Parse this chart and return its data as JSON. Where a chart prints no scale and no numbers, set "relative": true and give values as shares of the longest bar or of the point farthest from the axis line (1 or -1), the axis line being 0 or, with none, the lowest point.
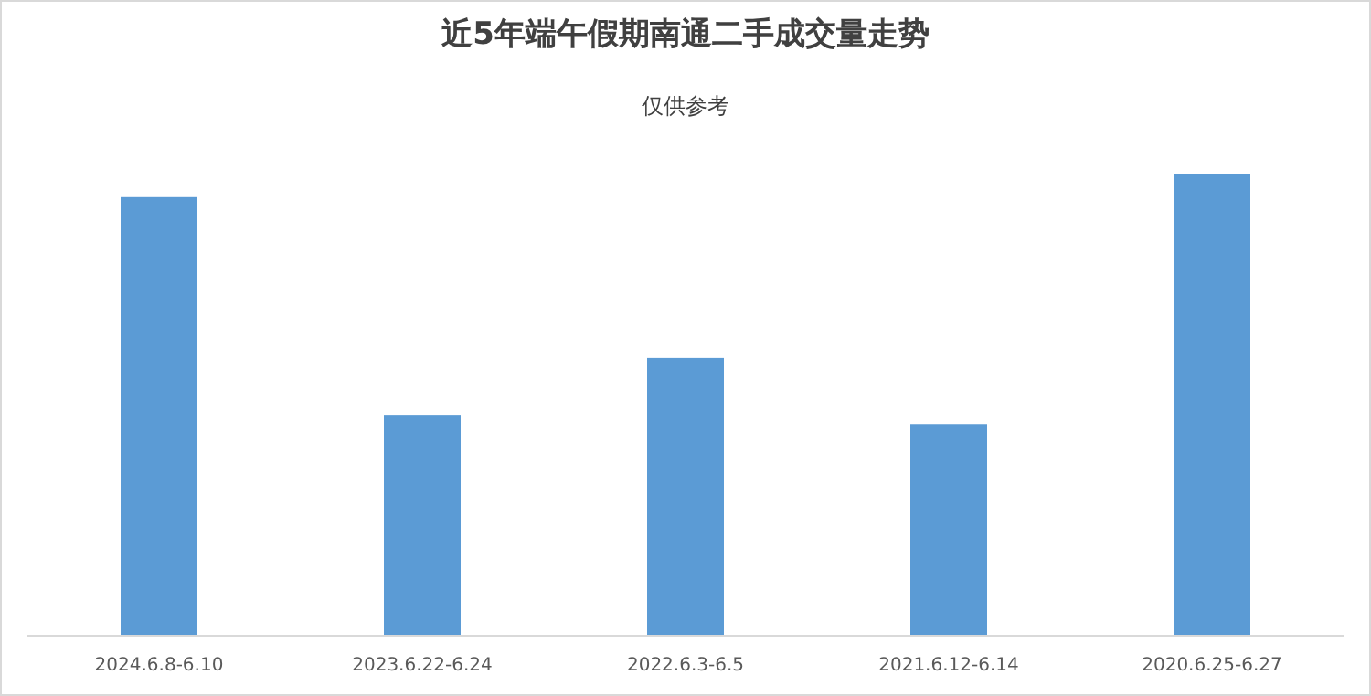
{
  "chart_data": {
    "type": "bar",
    "title": "近5年端午假期南通二手成交量走势",
    "subtitle": "仅供参考",
    "relative": true,
    "categories": [
      "2024.6.8-6.10",
      "2023.6.22-6.24",
      "2022.6.3-6.5",
      "2021.6.12-6.14",
      "2020.6.25-6.27"
    ],
    "values": [
      0.949,
      0.478,
      0.601,
      0.458,
      1
    ],
    "color": "#5b9bd5"
  }
}
